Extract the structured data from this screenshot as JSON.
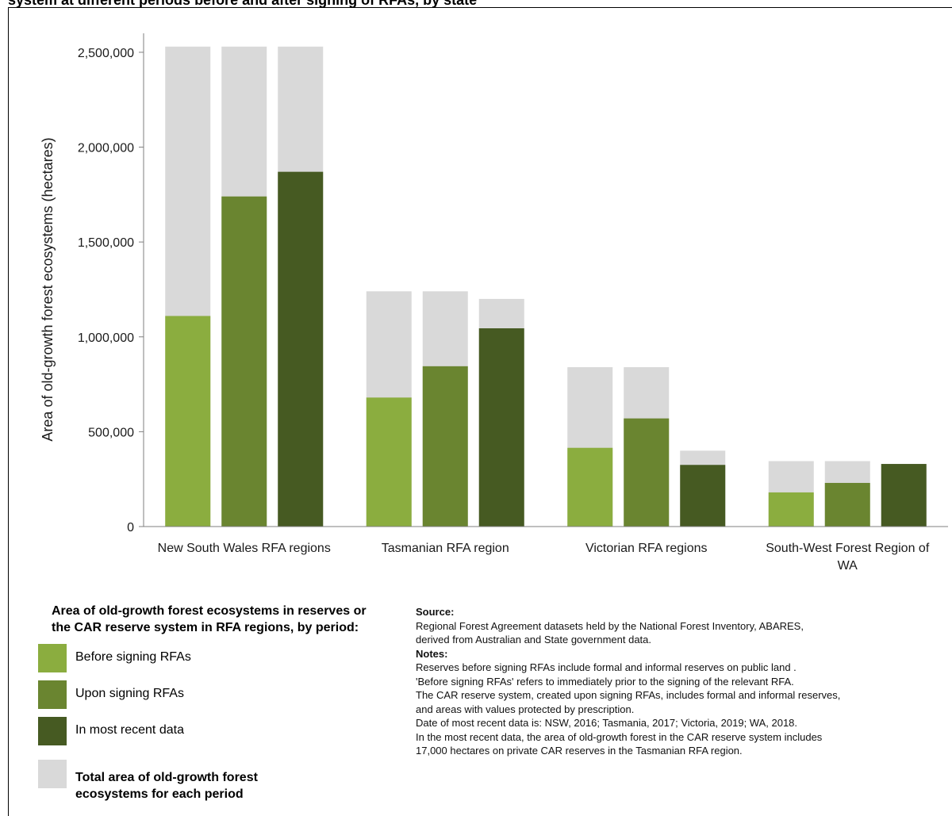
{
  "title": "system at different periods before and after signing of RFAs, by state",
  "colors": {
    "before": "#8bad3f",
    "upon": "#6a8530",
    "recent": "#465a22",
    "total": "#d9d9d9"
  },
  "chart_data": {
    "type": "bar",
    "ylabel": "Area of old-growth forest ecosystems (hectares)",
    "ylim": [
      0,
      2500000
    ],
    "yticks": [
      0,
      500000,
      1000000,
      1500000,
      2000000,
      2500000
    ],
    "ytick_labels": [
      "0",
      "500,000",
      "1,000,000",
      "1,500,000",
      "2,000,000",
      "2,500,000"
    ],
    "grid": false,
    "categories": [
      "New South Wales RFA regions",
      "Tasmanian RFA region",
      "Victorian RFA regions",
      "South-West Forest Region of WA"
    ],
    "category_label_lines": [
      [
        "New South Wales RFA regions"
      ],
      [
        "Tasmanian RFA region"
      ],
      [
        "Victorian RFA regions"
      ],
      [
        "South-West Forest Region of",
        "WA"
      ]
    ],
    "series": [
      {
        "name": "Before signing RFAs",
        "key": "before",
        "values": [
          1110000,
          680000,
          415000,
          180000
        ],
        "totals": [
          2530000,
          1240000,
          840000,
          345000
        ]
      },
      {
        "name": "Upon signing RFAs",
        "key": "upon",
        "values": [
          1740000,
          845000,
          570000,
          230000
        ],
        "totals": [
          2530000,
          1240000,
          840000,
          345000
        ]
      },
      {
        "name": "In most recent data",
        "key": "recent",
        "values": [
          1870000,
          1045000,
          325000,
          330000
        ],
        "totals": [
          2530000,
          1200000,
          400000,
          330000
        ]
      }
    ],
    "total_series_name": "Total area of old-growth forest ecosystems for each period"
  },
  "legend": {
    "title_line1": "Area of old-growth forest ecosystems in reserves or",
    "title_line2": "the CAR reserve system in RFA regions, by period:",
    "before": "Before signing RFAs",
    "upon": "Upon signing RFAs",
    "recent": "In most recent data",
    "total_line1": "Total area of old-growth forest",
    "total_line2": "ecosystems for each period"
  },
  "notes": {
    "source_hdr": "Source:",
    "source_1": "Regional Forest Agreement datasets held by the National Forest Inventory, ABARES,",
    "source_2": "derived from Australian and State government data.",
    "notes_hdr": "Notes:",
    "n1": "Reserves before signing RFAs include formal and informal reserves on public land .",
    "n2": "'Before signing RFAs' refers to immediately prior to the signing of the relevant RFA.",
    "n3": "The CAR reserve system, created upon signing RFAs, includes formal and informal reserves,",
    "n4": "and areas with values protected by prescription.",
    "n5": "Date of most recent data is: NSW, 2016; Tasmania, 2017; Victoria, 2019; WA, 2018.",
    "n6": "In the most recent data, the area of old-growth forest in the CAR reserve system includes",
    "n7": "17,000 hectares on private CAR reserves in the Tasmanian RFA region."
  }
}
